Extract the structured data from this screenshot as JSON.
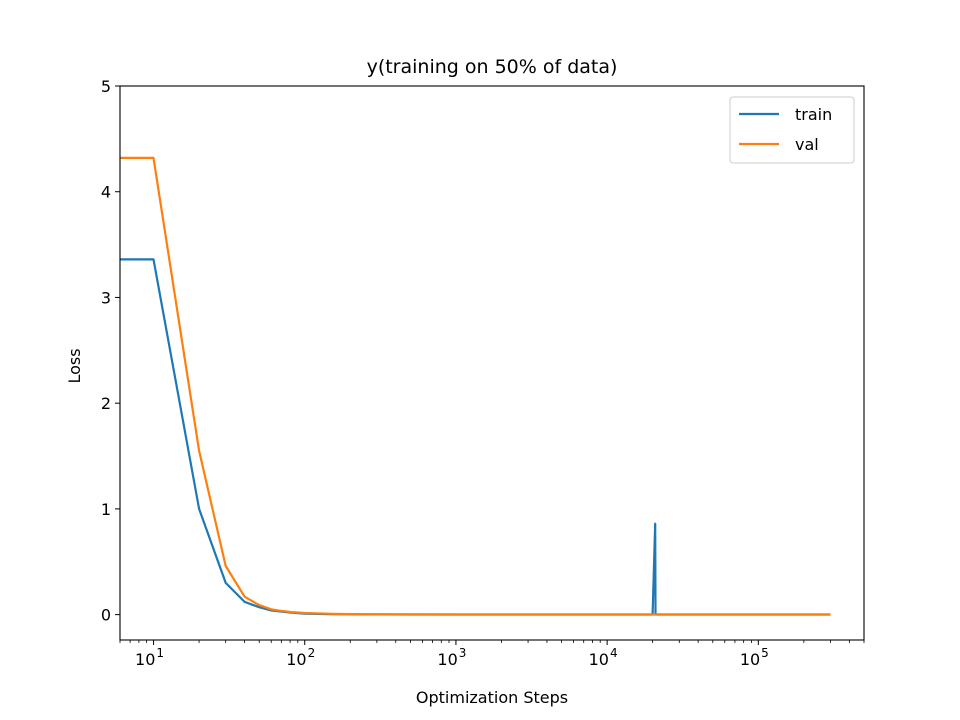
{
  "chart_data": {
    "type": "line",
    "title": "y(training on 50% of data)",
    "xlabel": "Optimization Steps",
    "ylabel": "Loss",
    "xscale": "log",
    "xlim": [
      6,
      500000
    ],
    "ylim": [
      -0.24,
      5.0
    ],
    "yticks": [
      0,
      1,
      2,
      3,
      4,
      5
    ],
    "xticks": [
      {
        "base": "10",
        "exp": "1",
        "value": 10
      },
      {
        "base": "10",
        "exp": "2",
        "value": 100
      },
      {
        "base": "10",
        "exp": "3",
        "value": 1000
      },
      {
        "base": "10",
        "exp": "4",
        "value": 10000
      },
      {
        "base": "10",
        "exp": "5",
        "value": 100000
      }
    ],
    "grid": false,
    "legend_position": "top-right",
    "series": [
      {
        "name": "train",
        "color": "#1f77b4",
        "x": [
          1,
          10,
          20,
          30,
          40,
          50,
          60,
          70,
          80,
          100,
          150,
          200,
          300,
          500,
          1000,
          5000,
          20000,
          20800,
          20900,
          21500,
          50000,
          100000,
          300000
        ],
        "y": [
          3.36,
          3.36,
          1.0,
          0.3,
          0.12,
          0.07,
          0.04,
          0.03,
          0.02,
          0.01,
          0.005,
          0.003,
          0.002,
          0.001,
          0.001,
          0.001,
          0.001,
          0.86,
          0.001,
          0.001,
          0.001,
          0.001,
          0.001
        ]
      },
      {
        "name": "val",
        "color": "#ff7f0e",
        "x": [
          1,
          10,
          20,
          30,
          40,
          50,
          60,
          70,
          80,
          100,
          150,
          200,
          300,
          500,
          1000,
          5000,
          20000,
          50000,
          100000,
          300000
        ],
        "y": [
          4.32,
          4.32,
          1.55,
          0.46,
          0.17,
          0.09,
          0.05,
          0.035,
          0.025,
          0.015,
          0.008,
          0.005,
          0.003,
          0.002,
          0.001,
          0.001,
          0.001,
          0.001,
          0.001,
          0.001
        ]
      }
    ]
  }
}
